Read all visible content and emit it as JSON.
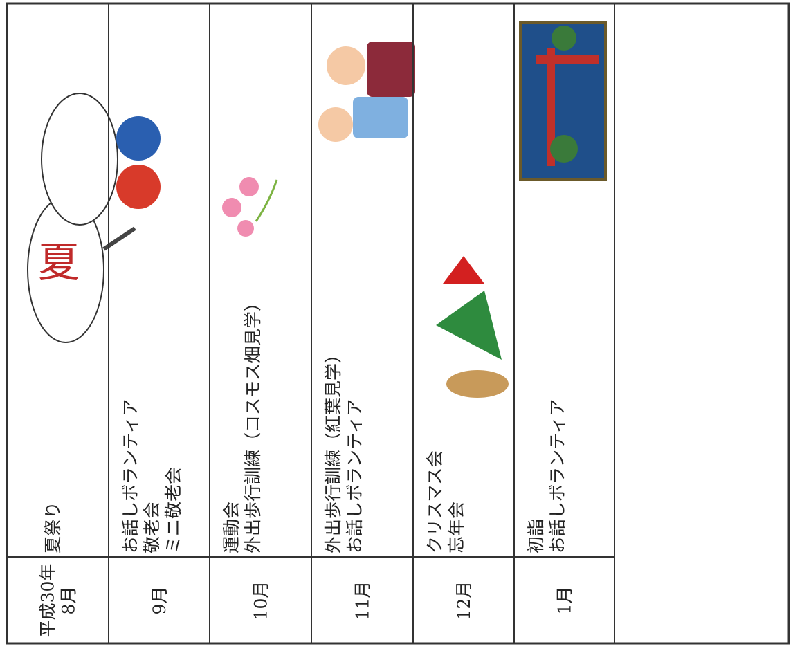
{
  "table": {
    "rows": [
      {
        "month": [
          "平成30年",
          "8月"
        ],
        "events": [
          "夏祭り"
        ]
      },
      {
        "month": [
          "9月"
        ],
        "events": [
          "お話しボランティア",
          "敬老会",
          "ミニ敬老会"
        ]
      },
      {
        "month": [
          "10月"
        ],
        "events": [
          "運動会",
          "外出歩行訓練（コスモス畑見学）"
        ]
      },
      {
        "month": [
          "11月"
        ],
        "events": [
          "外出歩行訓練（紅葉見学）",
          "お話しボランティア"
        ]
      },
      {
        "month": [
          "12月"
        ],
        "events": [
          "クリスマス会",
          "忘年会"
        ]
      },
      {
        "month": [
          "1月"
        ],
        "events": [
          "初詣",
          "お話しボランティア"
        ]
      },
      {
        "month": [],
        "events": []
      }
    ]
  }
}
